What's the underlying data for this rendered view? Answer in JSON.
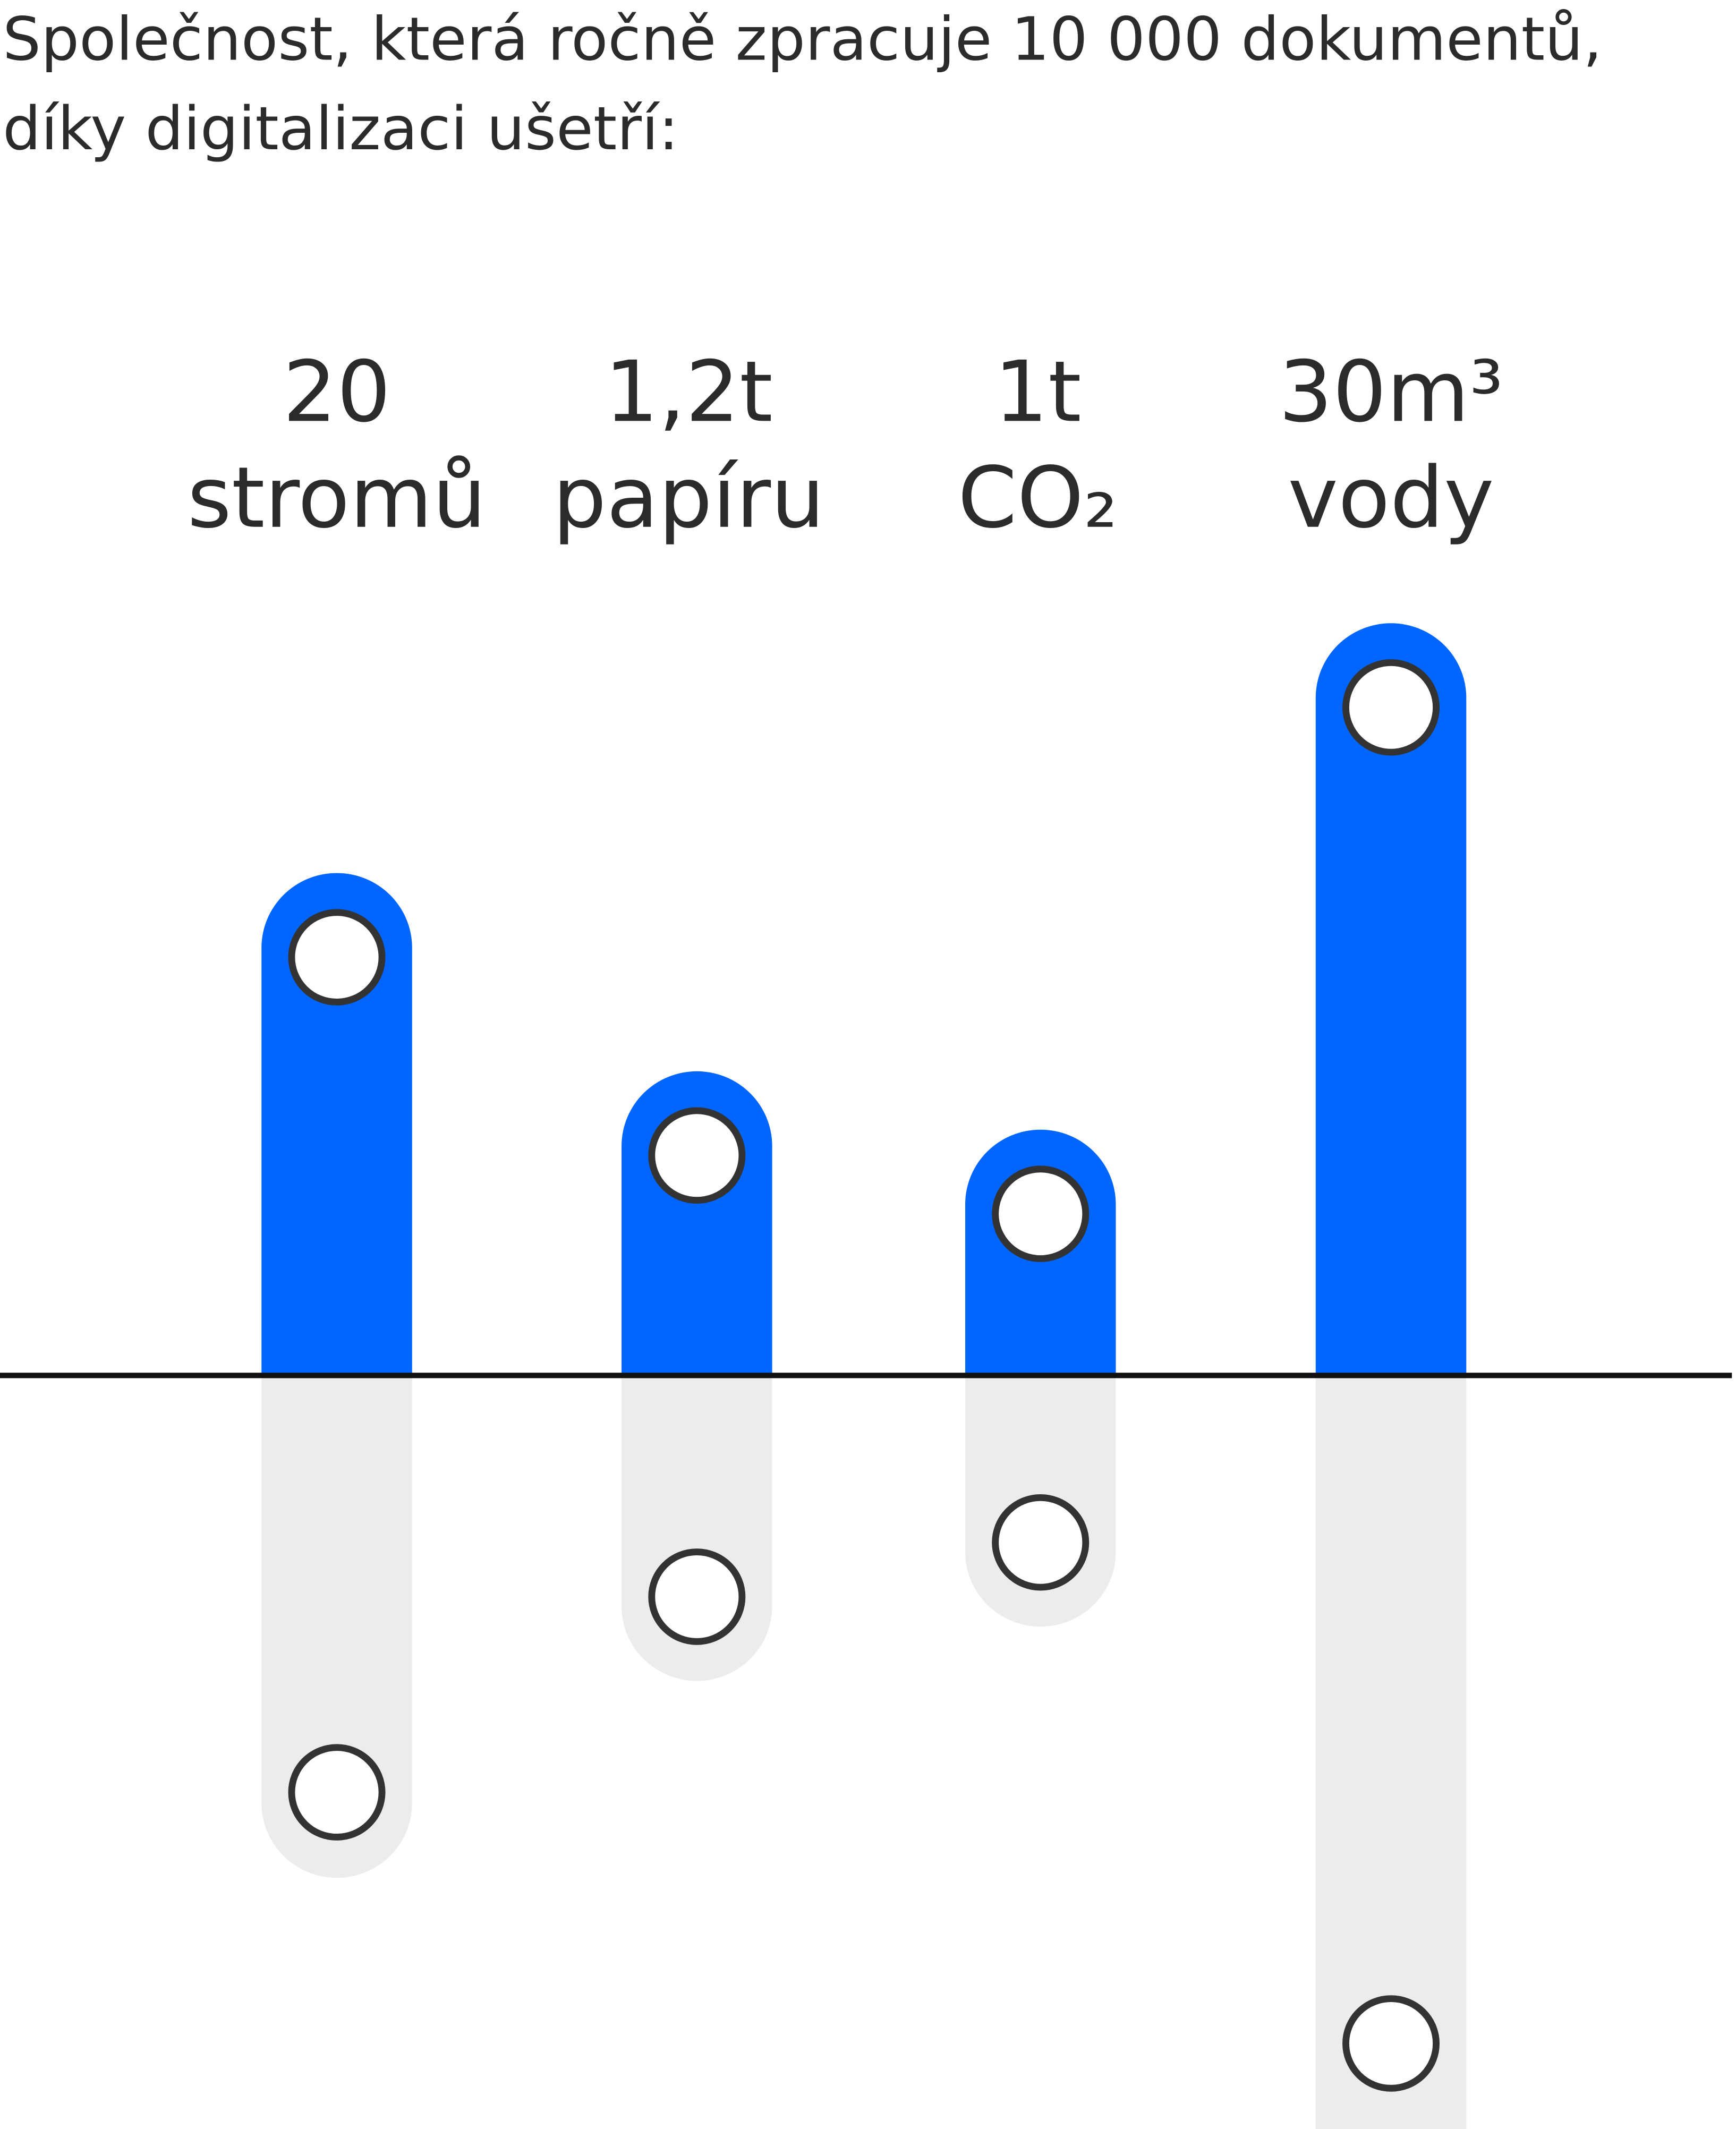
{
  "title": [
    "Společnost, která ročně zpracuje 10 000 dokumentů,",
    "díky digitalizaci ušetří:"
  ],
  "items": [
    {
      "value": "20",
      "unit": "stromů"
    },
    {
      "value": "1,2t",
      "unit": "papíru"
    },
    {
      "value": "1t",
      "unit": "CO₂"
    },
    {
      "value": "30m³",
      "unit": "vody"
    }
  ]
}
